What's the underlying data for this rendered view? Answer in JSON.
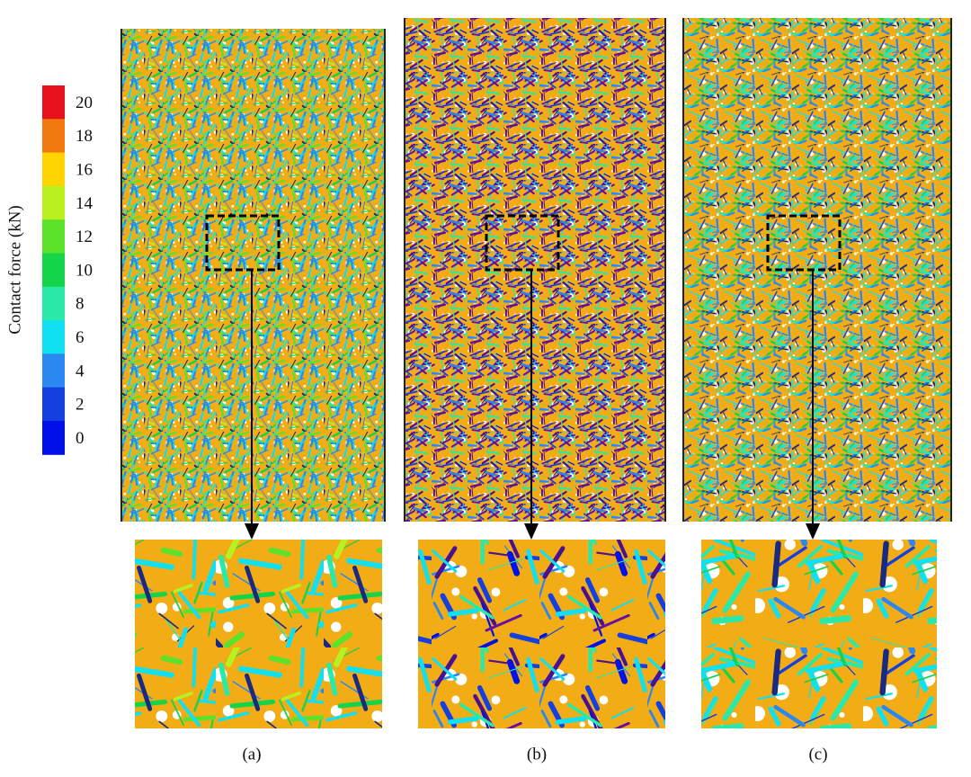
{
  "colorbar": {
    "title": "Contact force (kN)",
    "ticks": [
      20,
      18,
      16,
      14,
      12,
      10,
      8,
      6,
      4,
      2,
      0
    ],
    "colors": [
      "#e8101a",
      "#f07a10",
      "#ffd400",
      "#b8f020",
      "#5ce22a",
      "#14d44a",
      "#2ae8a8",
      "#10e0f0",
      "#2a88f0",
      "#1440e0",
      "#0010e8"
    ]
  },
  "panels": [
    "(a)",
    "(b)",
    "(c)"
  ]
}
